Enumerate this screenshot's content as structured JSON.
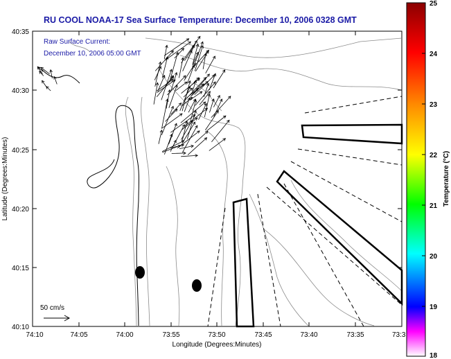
{
  "title": "RU COOL  NOAA-17  Sea Surface Temperature:  December 10, 2006 0328 GMT",
  "annotation": {
    "line1": "Raw Surface Current:",
    "line2": "December 10, 2006 05:00 GMT"
  },
  "x_axis": {
    "label": "Longitude (Degrees:Minutes)",
    "ticks": [
      "74:10",
      "74:05",
      "74:00",
      "73:55",
      "73:50",
      "73:45",
      "73:40",
      "73:35",
      "73:3"
    ]
  },
  "y_axis": {
    "label": "Latitude (Degrees:Minutes)",
    "ticks": [
      "40:35",
      "40:30",
      "40:25",
      "40:20",
      "40:15",
      "40:10"
    ]
  },
  "scale_label": "50 cm/s",
  "colorbar": {
    "label": "Temperature (°C)",
    "ticks": [
      "25",
      "24",
      "23",
      "22",
      "21",
      "20",
      "19",
      "18"
    ],
    "colors": [
      "#8b0000",
      "#ff0000",
      "#ff8c00",
      "#ffff00",
      "#00ff00",
      "#00ffff",
      "#0000ff",
      "#ff00ff",
      "#ffffff"
    ]
  },
  "colors": {
    "title": "#1a1aa6",
    "contour": "#888888",
    "coast": "#000000"
  }
}
